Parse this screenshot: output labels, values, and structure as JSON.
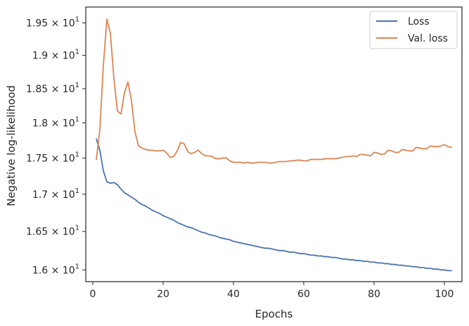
{
  "chart_data": {
    "type": "line",
    "xlabel": "Epochs",
    "ylabel": "Negative log-likelihood",
    "xlim": [
      -2,
      105
    ],
    "ylim": [
      15.85,
      19.75
    ],
    "yscale": "log",
    "grid": false,
    "legend_position": "top-right",
    "x_ticks": [
      0,
      20,
      40,
      60,
      80,
      100
    ],
    "x_tick_labels": [
      "0",
      "20",
      "40",
      "60",
      "80",
      "100"
    ],
    "y_ticks": [
      16.0,
      16.5,
      17.0,
      17.5,
      18.0,
      18.5,
      19.0,
      19.5
    ],
    "y_tick_labels": [
      {
        "mantissa": "1.6",
        "exponent": "1"
      },
      {
        "mantissa": "1.65",
        "exponent": "1"
      },
      {
        "mantissa": "1.7",
        "exponent": "1"
      },
      {
        "mantissa": "1.75",
        "exponent": "1"
      },
      {
        "mantissa": "1.8",
        "exponent": "1"
      },
      {
        "mantissa": "1.85",
        "exponent": "1"
      },
      {
        "mantissa": "1.9",
        "exponent": "1"
      },
      {
        "mantissa": "1.95",
        "exponent": "1"
      }
    ],
    "series": [
      {
        "name": "Loss",
        "color": "#4c72b0",
        "x": [
          1,
          2,
          3,
          4,
          5,
          6,
          7,
          8,
          9,
          10,
          11,
          12,
          13,
          14,
          15,
          16,
          17,
          18,
          19,
          20,
          21,
          22,
          23,
          24,
          25,
          26,
          27,
          28,
          29,
          30,
          31,
          32,
          33,
          34,
          35,
          36,
          37,
          38,
          39,
          40,
          41,
          42,
          43,
          44,
          45,
          46,
          47,
          48,
          49,
          50,
          51,
          52,
          53,
          54,
          55,
          56,
          57,
          58,
          59,
          60,
          61,
          62,
          63,
          64,
          65,
          66,
          67,
          68,
          69,
          70,
          71,
          72,
          73,
          74,
          75,
          76,
          77,
          78,
          79,
          80,
          81,
          82,
          83,
          84,
          85,
          86,
          87,
          88,
          89,
          90,
          91,
          92,
          93,
          94,
          95,
          96,
          97,
          98,
          99,
          100,
          101,
          102
        ],
        "y": [
          17.77,
          17.61,
          17.32,
          17.17,
          17.15,
          17.16,
          17.13,
          17.07,
          17.02,
          16.99,
          16.96,
          16.93,
          16.89,
          16.86,
          16.84,
          16.81,
          16.78,
          16.76,
          16.74,
          16.71,
          16.69,
          16.67,
          16.65,
          16.62,
          16.6,
          16.58,
          16.56,
          16.55,
          16.53,
          16.51,
          16.49,
          16.48,
          16.46,
          16.45,
          16.44,
          16.42,
          16.41,
          16.4,
          16.39,
          16.37,
          16.36,
          16.35,
          16.34,
          16.33,
          16.32,
          16.31,
          16.3,
          16.29,
          16.28,
          16.28,
          16.27,
          16.26,
          16.25,
          16.25,
          16.24,
          16.23,
          16.23,
          16.22,
          16.21,
          16.21,
          16.2,
          16.19,
          16.19,
          16.18,
          16.18,
          16.17,
          16.17,
          16.16,
          16.16,
          16.15,
          16.14,
          16.14,
          16.13,
          16.13,
          16.12,
          16.12,
          16.11,
          16.11,
          16.1,
          16.1,
          16.09,
          16.09,
          16.08,
          16.08,
          16.07,
          16.07,
          16.06,
          16.06,
          16.05,
          16.05,
          16.04,
          16.04,
          16.03,
          16.03,
          16.02,
          16.02,
          16.01,
          16.01,
          16.0,
          16.0,
          15.99,
          15.99
        ]
      },
      {
        "name": "Val. loss",
        "color": "#dd8452",
        "x": [
          1,
          2,
          3,
          4,
          5,
          6,
          7,
          8,
          9,
          10,
          11,
          12,
          13,
          14,
          15,
          16,
          17,
          18,
          19,
          20,
          21,
          22,
          23,
          24,
          25,
          26,
          27,
          28,
          29,
          30,
          31,
          32,
          33,
          34,
          35,
          36,
          37,
          38,
          39,
          40,
          41,
          42,
          43,
          44,
          45,
          46,
          47,
          48,
          49,
          50,
          51,
          52,
          53,
          54,
          55,
          56,
          57,
          58,
          59,
          60,
          61,
          62,
          63,
          64,
          65,
          66,
          67,
          68,
          69,
          70,
          71,
          72,
          73,
          74,
          75,
          76,
          77,
          78,
          79,
          80,
          81,
          82,
          83,
          84,
          85,
          86,
          87,
          88,
          89,
          90,
          91,
          92,
          93,
          94,
          95,
          96,
          97,
          98,
          99,
          100,
          101,
          102
        ],
        "y": [
          17.48,
          17.9,
          18.85,
          19.56,
          19.34,
          18.65,
          18.17,
          18.13,
          18.44,
          18.6,
          18.32,
          17.87,
          17.67,
          17.64,
          17.62,
          17.61,
          17.61,
          17.6,
          17.6,
          17.61,
          17.57,
          17.51,
          17.52,
          17.6,
          17.72,
          17.7,
          17.59,
          17.56,
          17.58,
          17.61,
          17.56,
          17.53,
          17.53,
          17.52,
          17.49,
          17.49,
          17.5,
          17.5,
          17.46,
          17.44,
          17.44,
          17.44,
          17.43,
          17.44,
          17.43,
          17.43,
          17.44,
          17.44,
          17.44,
          17.43,
          17.43,
          17.44,
          17.45,
          17.45,
          17.45,
          17.46,
          17.46,
          17.47,
          17.47,
          17.46,
          17.46,
          17.48,
          17.48,
          17.48,
          17.48,
          17.49,
          17.49,
          17.49,
          17.49,
          17.5,
          17.51,
          17.52,
          17.52,
          17.53,
          17.52,
          17.55,
          17.55,
          17.54,
          17.53,
          17.58,
          17.57,
          17.55,
          17.56,
          17.61,
          17.6,
          17.58,
          17.58,
          17.62,
          17.61,
          17.6,
          17.6,
          17.65,
          17.64,
          17.63,
          17.63,
          17.67,
          17.66,
          17.66,
          17.67,
          17.69,
          17.66,
          17.65
        ]
      }
    ]
  }
}
